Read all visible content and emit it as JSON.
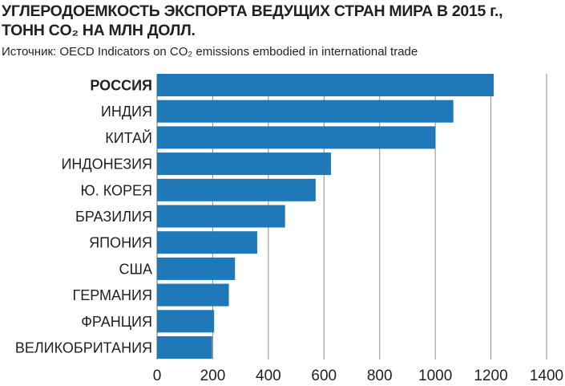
{
  "chart_data": {
    "type": "bar",
    "orientation": "horizontal",
    "title_lines": [
      "УГЛЕРОДОЕМКОСТЬ ЭКСПОРТА ВЕДУЩИХ СТРАН МИРА В 2015 г.,",
      "ТОНН CO₂ НА МЛН ДОЛЛ."
    ],
    "source": "Источник: OECD Indicators on CO₂ emissions embodied in international trade",
    "categories": [
      "РОССИЯ",
      "ИНДИЯ",
      "КИТАЙ",
      "ИНДОНЕЗИЯ",
      "Ю. КОРЕЯ",
      "БРАЗИЛИЯ",
      "ЯПОНИЯ",
      "США",
      "ГЕРМАНИЯ",
      "ФРАНЦИЯ",
      "ВЕЛИКОБРИТАНИЯ"
    ],
    "values": [
      1210,
      1065,
      1000,
      625,
      570,
      460,
      360,
      280,
      258,
      205,
      198
    ],
    "highlight_category": "РОССИЯ",
    "xlim": [
      0,
      1400
    ],
    "xticks": [
      0,
      200,
      400,
      600,
      800,
      1000,
      1200,
      1400
    ],
    "grid": "vertical",
    "bar_color": "#1f78b8",
    "grid_color": "#8a8c8e"
  }
}
